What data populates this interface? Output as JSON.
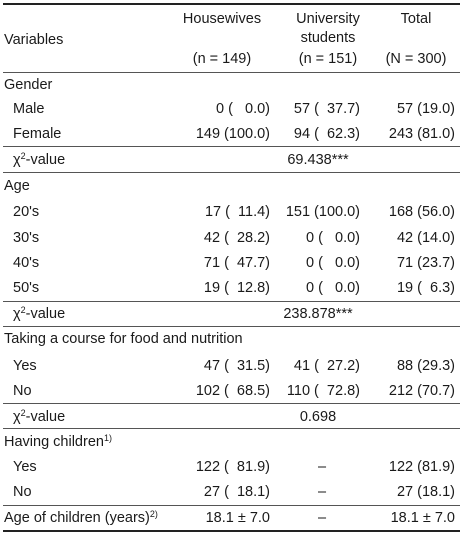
{
  "header": {
    "variables": "Variables",
    "col1_title": "Housewives",
    "col1_n": "(n = 149)",
    "col2_title_1": "University",
    "col2_title_2": "students",
    "col2_n": "(n = 151)",
    "col3_title": "Total",
    "col3_n": "(N = 300)"
  },
  "gender": {
    "title": "Gender",
    "rows": [
      {
        "label": "Male",
        "c1": "0 (   0.0)",
        "c2": "57 (  37.7)",
        "c3": "57 (19.0)"
      },
      {
        "label": "Female",
        "c1": "149 (100.0)",
        "c2": "94 (  62.3)",
        "c3": "243 (81.0)"
      }
    ],
    "chi_label_sym": "χ",
    "chi_label_sup": "2",
    "chi_label_rest": "-value",
    "chi_value": "69.438***"
  },
  "age": {
    "title": "Age",
    "rows": [
      {
        "label": "20's",
        "c1": "17 (  11.4)",
        "c2": "151 (100.0)",
        "c3": "168 (56.0)"
      },
      {
        "label": "30's",
        "c1": "42 (  28.2)",
        "c2": "0 (   0.0)",
        "c3": "42 (14.0)"
      },
      {
        "label": "40's",
        "c1": "71 (  47.7)",
        "c2": "0 (   0.0)",
        "c3": "71 (23.7)"
      },
      {
        "label": "50's",
        "c1": "19 (  12.8)",
        "c2": "0 (   0.0)",
        "c3": "19 (  6.3)"
      }
    ],
    "chi_label_sym": "χ",
    "chi_label_sup": "2",
    "chi_label_rest": "-value",
    "chi_value": "238.878***"
  },
  "course": {
    "title": "Taking a course for food and nutrition",
    "rows": [
      {
        "label": "Yes",
        "c1": "47 (  31.5)",
        "c2": "41 (  27.2)",
        "c3": "88 (29.3)"
      },
      {
        "label": "No",
        "c1": "102 (  68.5)",
        "c2": "110 (  72.8)",
        "c3": "212 (70.7)"
      }
    ],
    "chi_label_sym": "χ",
    "chi_label_sup": "2",
    "chi_label_rest": "-value",
    "chi_value": "0.698"
  },
  "children": {
    "title": "Having children",
    "title_sup": "1)",
    "rows": [
      {
        "label": "Yes",
        "c1": "122 (  81.9)",
        "c2": "–",
        "c3": "122 (81.9)"
      },
      {
        "label": "No",
        "c1": "27 (  18.1)",
        "c2": "–",
        "c3": "27 (18.1)"
      }
    ]
  },
  "age_children": {
    "label": "Age of children (years)",
    "label_sup": "2)",
    "c1": "18.1 ± 7.0",
    "c2": "–",
    "c3": "18.1 ± 7.0"
  }
}
